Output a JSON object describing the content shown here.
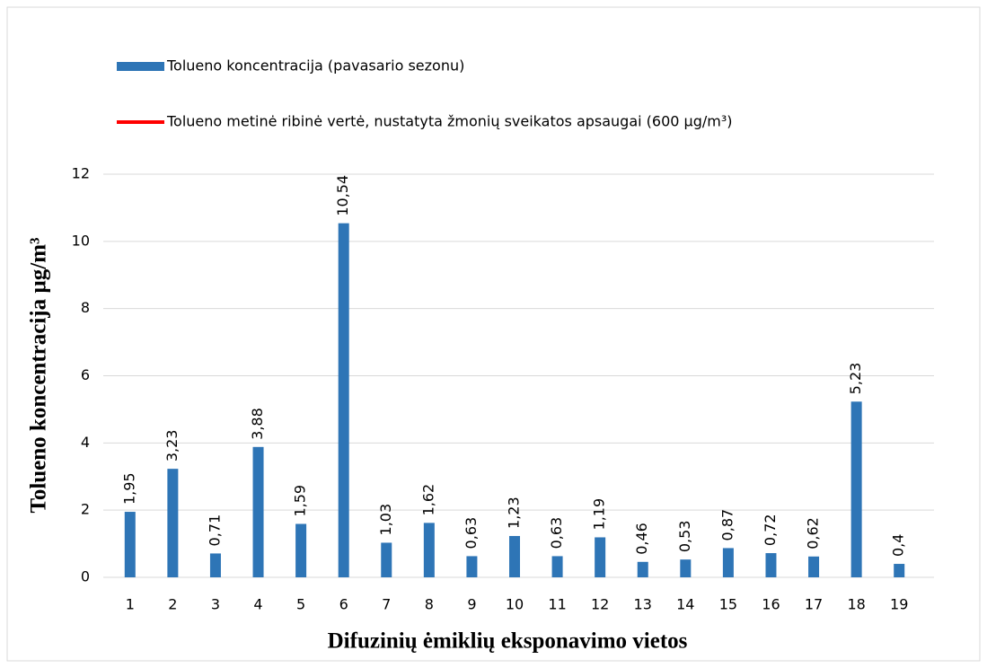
{
  "chart_data": {
    "type": "bar",
    "series": [
      {
        "name": "Tolueno koncentracija (pavasario sezonu)",
        "color": "#2e75b6",
        "values": [
          1.95,
          3.23,
          0.71,
          3.88,
          1.59,
          10.54,
          1.03,
          1.62,
          0.63,
          1.23,
          0.63,
          1.19,
          0.46,
          0.53,
          0.87,
          0.72,
          0.62,
          5.23,
          0.4
        ],
        "value_labels": [
          "1,95",
          "3,23",
          "0,71",
          "3,88",
          "1,59",
          "10,54",
          "1,03",
          "1,62",
          "0,63",
          "1,23",
          "0,63",
          "1,19",
          "0,46",
          "0,53",
          "0,87",
          "0,72",
          "0,62",
          "5,23",
          "0,4"
        ]
      },
      {
        "name": "Tolueno metinė ribinė vertė, nustatyta žmonių sveikatos apsaugai (600 µg/m³)",
        "color": "#ff0000",
        "type": "line"
      }
    ],
    "categories": [
      "1",
      "2",
      "3",
      "4",
      "5",
      "6",
      "7",
      "8",
      "9",
      "10",
      "11",
      "12",
      "13",
      "14",
      "15",
      "16",
      "17",
      "18",
      "19"
    ],
    "ylim": [
      0,
      12
    ],
    "yticks": [
      0,
      2,
      4,
      6,
      8,
      10,
      12
    ],
    "grid": true,
    "y_label": "Tolueno koncentracija  µg/m³",
    "x_label": "Difuzinių ėmiklių eksponavimo vietos"
  }
}
